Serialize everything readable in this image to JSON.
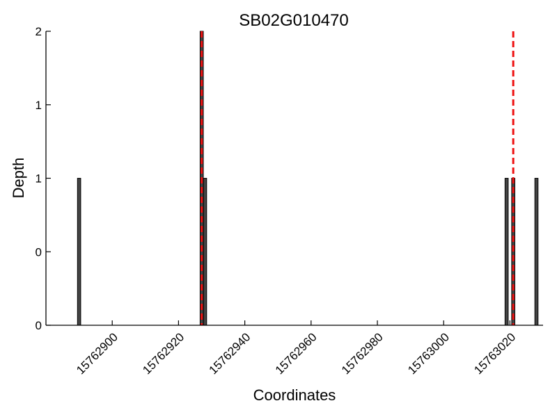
{
  "chart_data": {
    "type": "bar",
    "title": "SB02G010470",
    "xlabel": "Coordinates",
    "ylabel": "Depth",
    "xlim": [
      15762880,
      15763030
    ],
    "ylim": [
      0,
      2
    ],
    "x_ticks": [
      15762900,
      15762920,
      15762940,
      15762960,
      15762980,
      15763000,
      15763020
    ],
    "x_tick_labels": [
      "15762900",
      "15762920",
      "15762940",
      "15762960",
      "15762980",
      "15763000",
      "15763020"
    ],
    "y_ticks": [
      0,
      0.5,
      1,
      1.5,
      2
    ],
    "y_tick_labels": [
      "0",
      "0",
      "1",
      "1",
      "2"
    ],
    "grid": false,
    "bar_color": "#444444",
    "bars": [
      {
        "x": 15762890,
        "y": 1
      },
      {
        "x": 15762927,
        "y": 2
      },
      {
        "x": 15762928,
        "y": 1
      },
      {
        "x": 15763019,
        "y": 1
      },
      {
        "x": 15763021,
        "y": 1
      },
      {
        "x": 15763028,
        "y": 1
      }
    ],
    "markers": {
      "color": "#ee1111",
      "style": "dashed",
      "x": [
        15762927,
        15763021
      ]
    }
  }
}
